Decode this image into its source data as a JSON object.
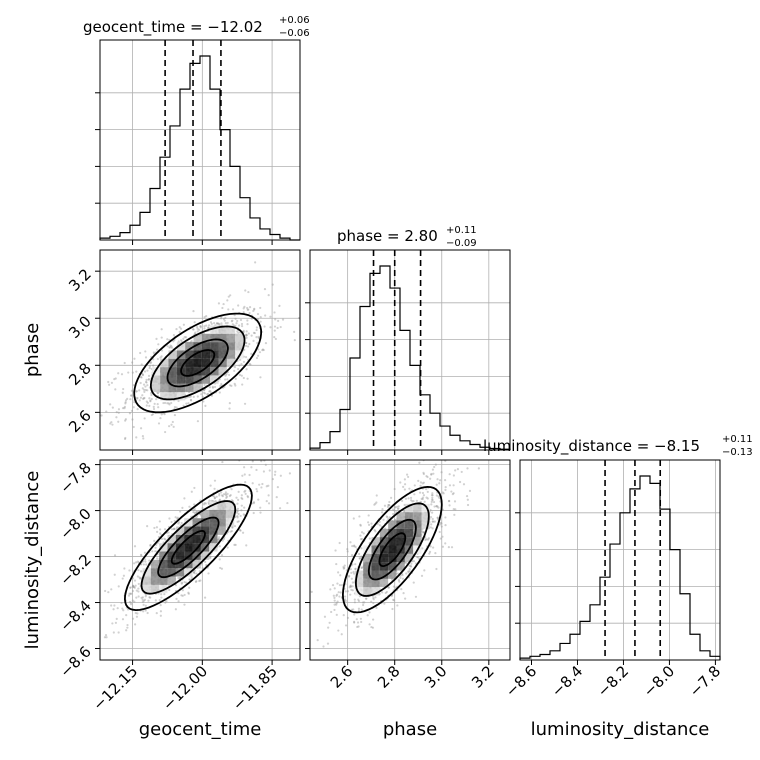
{
  "chart_data": {
    "type": "corner",
    "parameters": [
      {
        "name": "geocent_time",
        "xlabel": "geocent_time",
        "title_main": "geocent_time = −12.02",
        "title_plus": "+0.06",
        "title_minus": "−0.06",
        "median": -12.02,
        "plus": 0.06,
        "minus": 0.06,
        "range": [
          -12.22,
          -11.79
        ],
        "ticks": [
          -12.15,
          -12.0,
          -11.85
        ],
        "tick_labels": [
          "−12.15",
          "−12.00",
          "−11.85"
        ],
        "hist": [
          0.01,
          0.02,
          0.04,
          0.08,
          0.15,
          0.28,
          0.45,
          0.62,
          0.82,
          0.96,
          1.0,
          0.82,
          0.6,
          0.4,
          0.23,
          0.12,
          0.06,
          0.03,
          0.01,
          0.0
        ]
      },
      {
        "name": "phase",
        "xlabel": "phase",
        "ylabel": "phase",
        "title_main": "phase = 2.80",
        "title_plus": "+0.11",
        "title_minus": "−0.09",
        "median": 2.8,
        "plus": 0.11,
        "minus": 0.09,
        "range": [
          2.44,
          3.29
        ],
        "ticks": [
          2.6,
          2.8,
          3.0,
          3.2
        ],
        "tick_labels": [
          "2.6",
          "2.8",
          "3.0",
          "3.2"
        ],
        "hist": [
          0.01,
          0.04,
          0.1,
          0.22,
          0.5,
          0.78,
          0.96,
          1.0,
          0.88,
          0.65,
          0.46,
          0.3,
          0.2,
          0.13,
          0.08,
          0.05,
          0.03,
          0.015,
          0.008,
          0.004
        ]
      },
      {
        "name": "luminosity_distance",
        "xlabel": "luminosity_distance",
        "ylabel": "luminosity_distance",
        "title_main": "luminosity_distance = −8.15",
        "title_plus": "+0.11",
        "title_minus": "−0.13",
        "median": -8.15,
        "plus": 0.11,
        "minus": 0.13,
        "range": [
          -8.65,
          -7.78
        ],
        "ticks": [
          -8.6,
          -8.4,
          -8.2,
          -8.0,
          -7.8
        ],
        "tick_labels": [
          "−8.6",
          "−8.4",
          "−8.2",
          "−8.0",
          "−7.8"
        ],
        "hist": [
          0.01,
          0.02,
          0.03,
          0.05,
          0.09,
          0.14,
          0.21,
          0.3,
          0.45,
          0.63,
          0.8,
          0.93,
          1.0,
          0.96,
          0.82,
          0.6,
          0.36,
          0.14,
          0.05,
          0.02
        ]
      }
    ],
    "pairs": [
      {
        "x": "geocent_time",
        "y": "phase",
        "mean": [
          -12.01,
          2.81
        ],
        "std": [
          0.065,
          0.1
        ],
        "corr": 0.62
      },
      {
        "x": "geocent_time",
        "y": "luminosity_distance",
        "mean": [
          -12.03,
          -8.16
        ],
        "std": [
          0.065,
          0.13
        ],
        "corr": 0.82
      },
      {
        "x": "phase",
        "y": "luminosity_distance",
        "mean": [
          2.79,
          -8.17
        ],
        "std": [
          0.1,
          0.13
        ],
        "corr": 0.72
      }
    ],
    "grid": true,
    "quantile_lines": "dashed"
  }
}
